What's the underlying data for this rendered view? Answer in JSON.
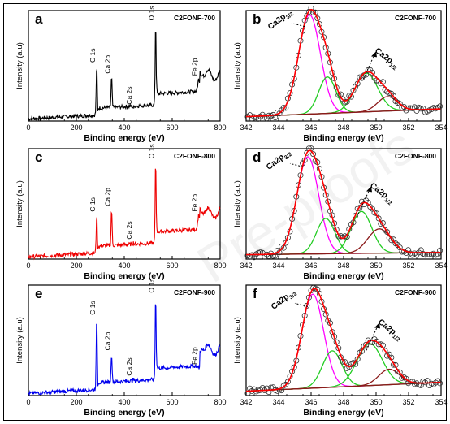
{
  "colors": {
    "peak_fit": "#ff00ff",
    "sat_fit": "#22cc22",
    "background": "#8b1a1a",
    "envelope": "#ff0000",
    "data_points": "#333333"
  },
  "watermark": "Pre-proofs",
  "chart_data": [
    {
      "id": "a",
      "type": "line",
      "panel_letter": "a",
      "sample": "C2FONF-700",
      "xlabel": "Binding energy (eV)",
      "ylabel": "Intensity (a.u)",
      "xlim": [
        0,
        800
      ],
      "xticks": [
        "0",
        "200",
        "400",
        "600",
        "800"
      ],
      "line_color": "#000000",
      "peaks": [
        {
          "label": "C 1s",
          "x": 285,
          "height": 0.5
        },
        {
          "label": "Ca 2p",
          "x": 347,
          "height": 0.4
        },
        {
          "label": "Ca 2s",
          "x": 438,
          "height": 0.12
        },
        {
          "label": "O 1s",
          "x": 531,
          "height": 0.88
        },
        {
          "label": "Fe 2p",
          "x": 711,
          "height": 0.38
        }
      ]
    },
    {
      "id": "b",
      "type": "line",
      "panel_letter": "b",
      "sample": "C2FONF-700",
      "xlabel": "Binding energy (eV)",
      "ylabel": "Intensity (a.u)",
      "xlim": [
        342,
        354
      ],
      "xticks": [
        "342",
        "344",
        "346",
        "348",
        "350",
        "352",
        "354"
      ],
      "annotations": [
        {
          "label": "Ca2p",
          "sub": "3/2"
        },
        {
          "label": "Ca2p",
          "sub": "1/2"
        }
      ],
      "series": [
        {
          "component": "Ca2p3/2 main",
          "center": 345.9,
          "amplitude": 0.9,
          "width": 0.95
        },
        {
          "component": "Ca2p3/2 satellite",
          "center": 347.0,
          "amplitude": 0.33,
          "width": 0.75
        },
        {
          "component": "Ca2p1/2 main",
          "center": 349.4,
          "amplitude": 0.35,
          "width": 1.0
        },
        {
          "component": "Ca2p1/2 satellite",
          "center": 350.7,
          "amplitude": 0.13,
          "width": 0.85
        }
      ],
      "baseline": [
        0.04,
        0.11
      ]
    },
    {
      "id": "c",
      "type": "line",
      "panel_letter": "c",
      "sample": "C2FONF-800",
      "xlabel": "Binding energy (eV)",
      "ylabel": "Intensity (a.u)",
      "xlim": [
        0,
        800
      ],
      "xticks": [
        "0",
        "200",
        "400",
        "600",
        "800"
      ],
      "line_color": "#ee0000",
      "peaks": [
        {
          "label": "C 1s",
          "x": 285,
          "height": 0.4
        },
        {
          "label": "Ca 2p",
          "x": 347,
          "height": 0.45
        },
        {
          "label": "Ca 2s",
          "x": 438,
          "height": 0.15
        },
        {
          "label": "O 1s",
          "x": 531,
          "height": 0.88
        },
        {
          "label": "Fe 2p",
          "x": 711,
          "height": 0.4
        }
      ]
    },
    {
      "id": "d",
      "type": "line",
      "panel_letter": "d",
      "sample": "C2FONF-800",
      "xlabel": "Binding energy (eV)",
      "ylabel": "Intensity (a.u)",
      "xlim": [
        342,
        354
      ],
      "xticks": [
        "342",
        "344",
        "346",
        "348",
        "350",
        "352",
        "354"
      ],
      "annotations": [
        {
          "label": "Ca2p",
          "sub": "3/2"
        },
        {
          "label": "Ca2p",
          "sub": "1/2"
        }
      ],
      "series": [
        {
          "component": "Ca2p3/2 main",
          "center": 345.8,
          "amplitude": 0.88,
          "width": 0.95
        },
        {
          "component": "Ca2p3/2 satellite",
          "center": 346.9,
          "amplitude": 0.32,
          "width": 0.8
        },
        {
          "component": "Ca2p1/2 main",
          "center": 349.1,
          "amplitude": 0.38,
          "width": 0.9
        },
        {
          "component": "Ca2p1/2 satellite",
          "center": 350.2,
          "amplitude": 0.22,
          "width": 1.0
        }
      ],
      "baseline": [
        0.04,
        0.06
      ]
    },
    {
      "id": "e",
      "type": "line",
      "panel_letter": "e",
      "sample": "C2FONF-900",
      "xlabel": "Binding energy (eV)",
      "ylabel": "Intensity (a.u)",
      "xlim": [
        0,
        800
      ],
      "xticks": [
        "0",
        "200",
        "400",
        "600",
        "800"
      ],
      "line_color": "#0000ee",
      "peaks": [
        {
          "label": "C 1s",
          "x": 285,
          "height": 0.7
        },
        {
          "label": "Ca 2p",
          "x": 347,
          "height": 0.38
        },
        {
          "label": "Ca 2s",
          "x": 438,
          "height": 0.15
        },
        {
          "label": "O 1s",
          "x": 531,
          "height": 0.9
        },
        {
          "label": "Fe 2p",
          "x": 711,
          "height": 0.25
        }
      ]
    },
    {
      "id": "f",
      "type": "line",
      "panel_letter": "f",
      "sample": "C2FONF-900",
      "xlabel": "Binding energy (eV)",
      "ylabel": "Intensity (a.u)",
      "xlim": [
        342,
        354
      ],
      "xticks": [
        "342",
        "344",
        "346",
        "348",
        "350",
        "352",
        "354"
      ],
      "annotations": [
        {
          "label": "Ca2p",
          "sub": "3/2"
        },
        {
          "label": "Ca2p",
          "sub": "1/2"
        }
      ],
      "series": [
        {
          "component": "Ca2p3/2 main",
          "center": 346.1,
          "amplitude": 0.85,
          "width": 0.95
        },
        {
          "component": "Ca2p3/2 satellite",
          "center": 347.3,
          "amplitude": 0.33,
          "width": 0.85
        },
        {
          "component": "Ca2p1/2 main",
          "center": 349.6,
          "amplitude": 0.38,
          "width": 1.1
        },
        {
          "component": "Ca2p1/2 satellite",
          "center": 350.8,
          "amplitude": 0.14,
          "width": 0.9
        }
      ],
      "baseline": [
        0.04,
        0.12
      ]
    }
  ]
}
